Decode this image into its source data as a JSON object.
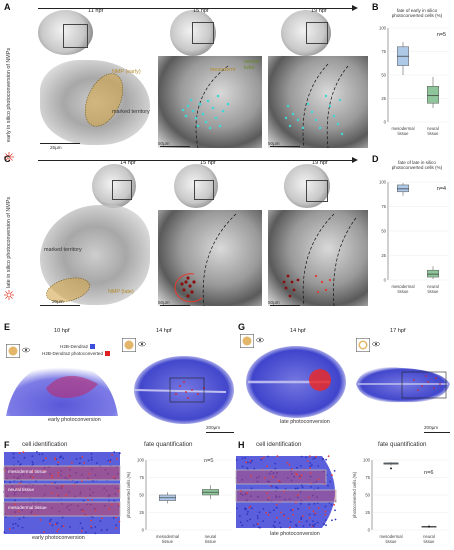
{
  "panels": {
    "A": {
      "letter": "A",
      "side_label": "early in silico photoconversion of NMPs",
      "times": [
        "11 hpf",
        "15 hpf",
        "19 hpf"
      ],
      "labels": {
        "nmp": "NMP (early)",
        "marked": "marked territory",
        "meso": "mesoderm",
        "neural": "neural tube"
      },
      "scales": [
        "25µm",
        "50µm",
        "50µm"
      ]
    },
    "B": {
      "letter": "B",
      "ylabel": "fate of early in silico photoconverted cells (%)",
      "n": "n=5",
      "categories": [
        "mesodermal tissue",
        "neural tissue"
      ]
    },
    "C": {
      "letter": "C",
      "side_label": "late in silico photoconversion of NMPs",
      "times": [
        "14 hpf",
        "15 hpf",
        "19 hpf"
      ],
      "labels": {
        "nmp": "NMP (late)",
        "marked": "marked territory"
      },
      "scales": [
        "25µm",
        "50µm",
        "50µm"
      ]
    },
    "D": {
      "letter": "D",
      "ylabel": "fate of late in silico photoconverted cells (%)",
      "n": "n=4",
      "categories": [
        "mesodermal tissue",
        "neural tissue"
      ]
    },
    "E": {
      "letter": "E",
      "times": [
        "10 hpf",
        "14 hpf"
      ],
      "legend": [
        "H2B-Dendra2",
        "H2B-Dendra2 photoconverted"
      ],
      "caption": "early photoconversion",
      "scale": "200µm"
    },
    "F": {
      "letter": "F",
      "title": "cell identification",
      "tissue_labels": [
        "mesodermal tissue",
        "neural tissue",
        "mesodermal tissue"
      ],
      "caption": "early photoconversion",
      "quant_title": "fate quantification",
      "n": "n=5",
      "ylabel": "photoconverted cells (%)",
      "categories": [
        "mesodermal tissue",
        "neural tissue"
      ]
    },
    "G": {
      "letter": "G",
      "times": [
        "14 hpf",
        "17 hpf"
      ],
      "caption": "late photoconversion",
      "scale": "200µm"
    },
    "H": {
      "letter": "H",
      "title": "cell identification",
      "caption": "late photoconversion",
      "quant_title": "fate quantification",
      "n": "n=6",
      "ylabel": "photoconverted cells (%)",
      "categories": [
        "mesodermal tissue",
        "neural tissue"
      ]
    }
  },
  "chart_data": [
    {
      "id": "B",
      "type": "box",
      "categories": [
        "mesodermal tissue",
        "neural tissue"
      ],
      "boxes": [
        {
          "min": 50,
          "q1": 60,
          "median": 70,
          "q3": 80,
          "max": 85
        },
        {
          "min": 15,
          "q1": 20,
          "median": 28,
          "q3": 38,
          "max": 48
        }
      ],
      "colors": [
        "#aec8e8",
        "#8fc59a"
      ],
      "ylim": [
        0,
        100
      ],
      "yticks": [
        0,
        25,
        50,
        75,
        100
      ]
    },
    {
      "id": "D",
      "type": "box",
      "categories": [
        "mesodermal tissue",
        "neural tissue"
      ],
      "boxes": [
        {
          "min": 86,
          "q1": 90,
          "median": 93,
          "q3": 97,
          "max": 99
        },
        {
          "min": 1,
          "q1": 3,
          "median": 6,
          "q3": 10,
          "max": 14
        }
      ],
      "colors": [
        "#aec8e8",
        "#8fc59a"
      ],
      "ylim": [
        0,
        100
      ],
      "yticks": [
        0,
        25,
        50,
        75,
        100
      ]
    },
    {
      "id": "F",
      "type": "box",
      "categories": [
        "mesodermal tissue",
        "neural tissue"
      ],
      "boxes": [
        {
          "min": 38,
          "q1": 42,
          "median": 46,
          "q3": 50,
          "max": 54
        },
        {
          "min": 44,
          "q1": 50,
          "median": 54,
          "q3": 58,
          "max": 64
        }
      ],
      "colors": [
        "#aec8e8",
        "#8fc59a"
      ],
      "ylim": [
        0,
        100
      ],
      "yticks": [
        0,
        25,
        50,
        75,
        100
      ]
    },
    {
      "id": "H",
      "type": "box",
      "categories": [
        "mesodermal tissue",
        "neural tissue"
      ],
      "boxes": [
        {
          "min": 92,
          "q1": 94,
          "median": 95,
          "q3": 96,
          "max": 97
        },
        {
          "min": 3,
          "q1": 4,
          "median": 5,
          "q3": 5,
          "max": 6
        }
      ],
      "colors": [
        "#aec8e8",
        "#8fc59a"
      ],
      "ylim": [
        0,
        100
      ],
      "yticks": [
        0,
        25,
        50,
        75,
        100
      ]
    }
  ],
  "colors": {
    "red_marker": "#e43a2c",
    "mustard": "#d4a84b",
    "cyan": "#40d6d6",
    "blue_cells": "#3b4fd8",
    "red_cells": "#e02020"
  }
}
